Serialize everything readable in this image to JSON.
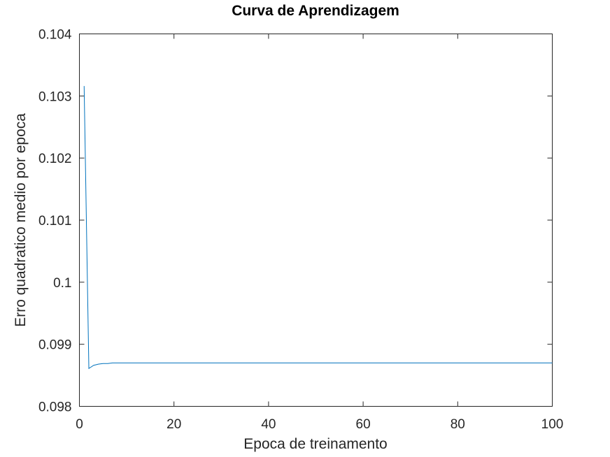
{
  "chart_data": {
    "type": "line",
    "title": "Curva de Aprendizagem",
    "xlabel": "Epoca de treinamento",
    "ylabel": "Erro quadratico medio por epoca",
    "xlim": [
      0,
      100
    ],
    "ylim": [
      0.098,
      0.104
    ],
    "xticks": [
      0,
      20,
      40,
      60,
      80,
      100
    ],
    "xtick_labels": [
      "0",
      "20",
      "40",
      "60",
      "80",
      "100"
    ],
    "yticks": [
      0.098,
      0.099,
      0.1,
      0.101,
      0.102,
      0.103,
      0.104
    ],
    "ytick_labels": [
      "0.098",
      "0.099",
      "0.1",
      "0.101",
      "0.102",
      "0.103",
      "0.104"
    ],
    "grid": false,
    "legend": "none",
    "series": [
      {
        "color": "#0072bd",
        "x": [
          1,
          2,
          3,
          4,
          5,
          6,
          7,
          8,
          10,
          15,
          20,
          30,
          40,
          50,
          60,
          70,
          80,
          90,
          100
        ],
        "y": [
          0.10316,
          0.09861,
          0.09866,
          0.09868,
          0.09869,
          0.09869,
          0.0987,
          0.0987,
          0.0987,
          0.0987,
          0.0987,
          0.0987,
          0.0987,
          0.0987,
          0.0987,
          0.0987,
          0.0987,
          0.0987,
          0.0987
        ]
      }
    ]
  }
}
